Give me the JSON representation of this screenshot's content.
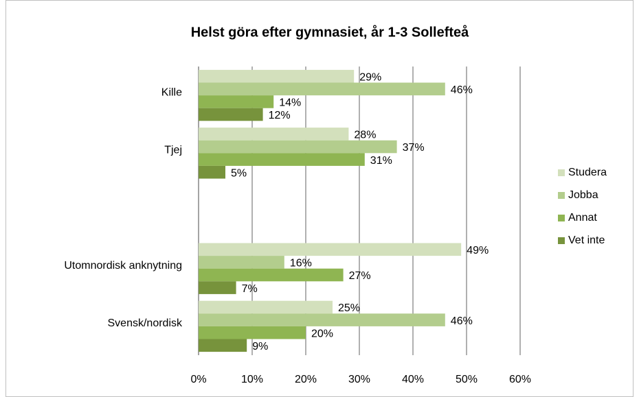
{
  "chart_data": {
    "type": "hbar",
    "title": "Helst göra efter gymnasiet, år 1-3 Sollefteå",
    "categories": [
      "Kille",
      "Tjej",
      null,
      "Utomnordisk anknytning",
      "Svensk/nordisk"
    ],
    "series": [
      {
        "name": "Studera",
        "color": "#d3e0bc",
        "values": [
          29,
          28,
          null,
          49,
          25
        ],
        "value_labels": [
          "29%",
          "28%",
          null,
          "49%",
          "25%"
        ]
      },
      {
        "name": "Jobba",
        "color": "#b3cd8d",
        "values": [
          46,
          37,
          null,
          16,
          46
        ],
        "value_labels": [
          "46%",
          "37%",
          null,
          "16%",
          "46%"
        ]
      },
      {
        "name": "Annat",
        "color": "#8fb552",
        "values": [
          14,
          31,
          null,
          27,
          20
        ],
        "value_labels": [
          "14%",
          "31%",
          null,
          "27%",
          "20%"
        ]
      },
      {
        "name": "Vet inte",
        "color": "#77933c",
        "values": [
          12,
          5,
          null,
          7,
          9
        ],
        "value_labels": [
          "12%",
          "5%",
          null,
          "7%",
          "9%"
        ]
      }
    ],
    "xlim": [
      0,
      60
    ],
    "xticks": [
      {
        "value": 0,
        "label": "0%"
      },
      {
        "value": 10,
        "label": "10%"
      },
      {
        "value": 20,
        "label": "20%"
      },
      {
        "value": 30,
        "label": "30%"
      },
      {
        "value": 40,
        "label": "40%"
      },
      {
        "value": 50,
        "label": "50%"
      },
      {
        "value": 60,
        "label": "60%"
      }
    ],
    "grid": true,
    "legend": "right"
  }
}
